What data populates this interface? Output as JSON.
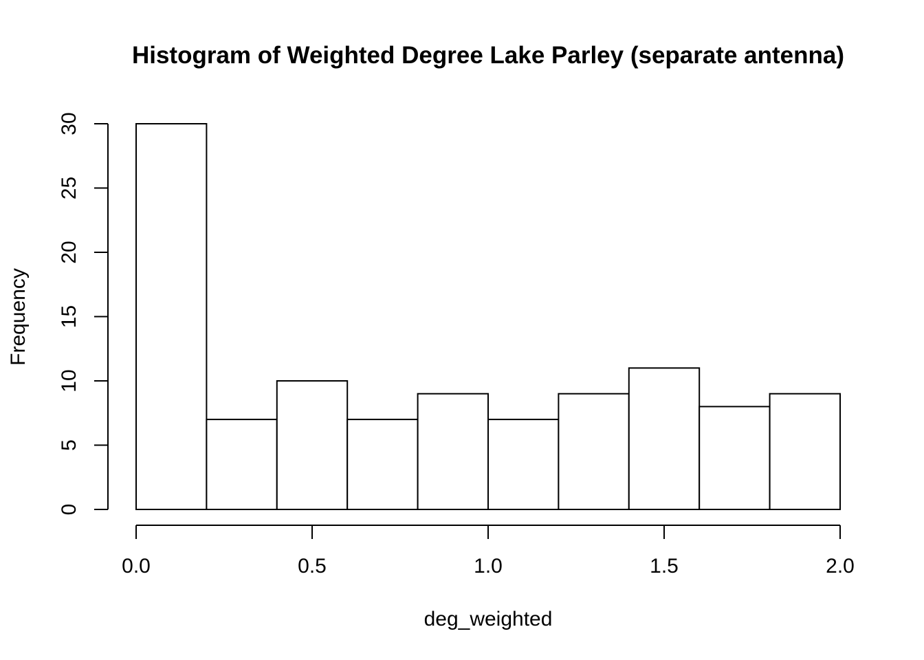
{
  "chart_data": {
    "type": "bar",
    "title": "Histogram of Weighted Degree Lake Parley (separate antenna)",
    "xlabel": "deg_weighted",
    "ylabel": "Frequency",
    "bins": [
      {
        "start": 0.0,
        "end": 0.2,
        "count": 30
      },
      {
        "start": 0.2,
        "end": 0.4,
        "count": 7
      },
      {
        "start": 0.4,
        "end": 0.6,
        "count": 10
      },
      {
        "start": 0.6,
        "end": 0.8,
        "count": 7
      },
      {
        "start": 0.8,
        "end": 1.0,
        "count": 9
      },
      {
        "start": 1.0,
        "end": 1.2,
        "count": 7
      },
      {
        "start": 1.2,
        "end": 1.4,
        "count": 9
      },
      {
        "start": 1.4,
        "end": 1.6,
        "count": 11
      },
      {
        "start": 1.6,
        "end": 1.8,
        "count": 8
      },
      {
        "start": 1.8,
        "end": 2.0,
        "count": 9
      }
    ],
    "xlim": [
      0.0,
      2.0
    ],
    "ylim": [
      0,
      30
    ],
    "x_ticks": [
      {
        "value": 0.0,
        "label": "0.0"
      },
      {
        "value": 0.5,
        "label": "0.5"
      },
      {
        "value": 1.0,
        "label": "1.0"
      },
      {
        "value": 1.5,
        "label": "1.5"
      },
      {
        "value": 2.0,
        "label": "2.0"
      }
    ],
    "y_ticks": [
      {
        "value": 0,
        "label": "0"
      },
      {
        "value": 5,
        "label": "5"
      },
      {
        "value": 10,
        "label": "10"
      },
      {
        "value": 15,
        "label": "15"
      },
      {
        "value": 20,
        "label": "20"
      },
      {
        "value": 25,
        "label": "25"
      },
      {
        "value": 30,
        "label": "30"
      }
    ],
    "grid": false,
    "bar_fill": "#ffffff",
    "bar_stroke": "#000000"
  }
}
